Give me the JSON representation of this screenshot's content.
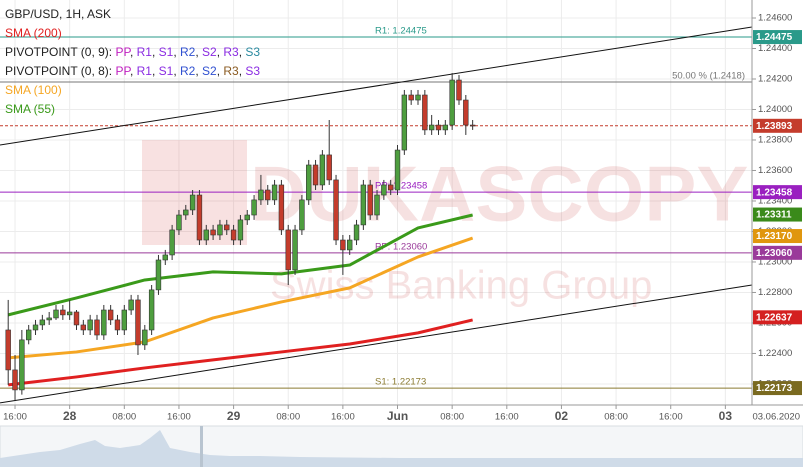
{
  "chart_data": {
    "type": "candlestick",
    "title": "GBP/USD, 1H, ASK",
    "up_color": "#4e9e3f",
    "down_color": "#c43c2c",
    "open": [
      1.22554,
      1.22292,
      1.22161,
      1.22489,
      1.22554,
      1.22587,
      1.2262,
      1.22633,
      1.22685,
      1.22653,
      1.22672,
      1.22587,
      1.22554,
      1.2262,
      1.22521,
      1.22685,
      1.2262,
      1.22554,
      1.22685,
      1.22751,
      1.22456,
      1.22554,
      1.22817,
      1.23013,
      1.23046,
      1.2321,
      1.23308,
      1.23341,
      1.23439,
      1.23144,
      1.2321,
      1.23177,
      1.23243,
      1.2321,
      1.23144,
      1.23276,
      1.23308,
      1.23407,
      1.23472,
      1.23407,
      1.23505,
      1.2321,
      1.22948,
      1.2321,
      1.23407,
      1.23636,
      1.23505,
      1.23702,
      1.23538,
      1.23144,
      1.23079,
      1.23144,
      1.23243,
      1.23505,
      1.23308,
      1.23439,
      1.23505,
      1.23472,
      1.23734,
      1.24095,
      1.24062,
      1.24095,
      1.23866,
      1.23898,
      1.23866,
      1.23898,
      1.24193,
      1.24062,
      1.23898
    ],
    "high": [
      1.22751,
      1.2239,
      1.22554,
      1.22587,
      1.2262,
      1.22653,
      1.22672,
      1.22718,
      1.22718,
      1.22751,
      1.22685,
      1.2262,
      1.22653,
      1.22653,
      1.22718,
      1.22718,
      1.22653,
      1.22718,
      1.22784,
      1.22784,
      1.22587,
      1.22849,
      1.23046,
      1.23079,
      1.23243,
      1.23341,
      1.23374,
      1.23472,
      1.23472,
      1.23243,
      1.23243,
      1.23276,
      1.23276,
      1.23243,
      1.23308,
      1.23341,
      1.23439,
      1.23571,
      1.23505,
      1.23538,
      1.23538,
      1.23243,
      1.23243,
      1.23439,
      1.23669,
      1.23669,
      1.23734,
      1.23931,
      1.23571,
      1.23177,
      1.23177,
      1.23276,
      1.23538,
      1.23538,
      1.23472,
      1.23538,
      1.23538,
      1.23767,
      1.24128,
      1.24128,
      1.24128,
      1.24128,
      1.23964,
      1.23931,
      1.23931,
      1.24239,
      1.24226,
      1.24095,
      1.23931
    ],
    "low": [
      1.22194,
      1.22095,
      1.2213,
      1.2246,
      1.22521,
      1.22554,
      1.22587,
      1.2262,
      1.2262,
      1.2262,
      1.22554,
      1.22521,
      1.22521,
      1.22489,
      1.22489,
      1.22587,
      1.22521,
      1.22521,
      1.22653,
      1.2239,
      1.22423,
      1.22521,
      1.22784,
      1.2298,
      1.23013,
      1.23177,
      1.23276,
      1.23308,
      1.23111,
      1.23111,
      1.23144,
      1.23144,
      1.23177,
      1.23111,
      1.23111,
      1.23243,
      1.23276,
      1.23374,
      1.23374,
      1.23374,
      1.23177,
      1.22849,
      1.22915,
      1.23177,
      1.23374,
      1.23472,
      1.23472,
      1.23505,
      1.23111,
      1.22915,
      1.23046,
      1.23111,
      1.2321,
      1.23276,
      1.23276,
      1.23407,
      1.23439,
      1.23439,
      1.23702,
      1.2403,
      1.2403,
      1.23833,
      1.23833,
      1.23833,
      1.23833,
      1.23866,
      1.2403,
      1.23833,
      1.23866
    ],
    "close": [
      1.22292,
      1.22161,
      1.22489,
      1.22554,
      1.22587,
      1.2262,
      1.22633,
      1.22685,
      1.22653,
      1.22672,
      1.22587,
      1.22554,
      1.2262,
      1.22521,
      1.22685,
      1.2262,
      1.22554,
      1.22685,
      1.22751,
      1.22456,
      1.22554,
      1.22817,
      1.23013,
      1.23046,
      1.2321,
      1.23308,
      1.23341,
      1.23439,
      1.23144,
      1.2321,
      1.23177,
      1.23243,
      1.2321,
      1.23144,
      1.23276,
      1.23308,
      1.23407,
      1.23472,
      1.23407,
      1.23505,
      1.2321,
      1.22948,
      1.2321,
      1.23407,
      1.23636,
      1.23505,
      1.23702,
      1.23538,
      1.23144,
      1.23079,
      1.23144,
      1.23243,
      1.23505,
      1.23308,
      1.23439,
      1.23505,
      1.23472,
      1.23734,
      1.24095,
      1.24062,
      1.24095,
      1.23866,
      1.23898,
      1.23866,
      1.23898,
      1.24193,
      1.24062,
      1.23898,
      1.23893
    ],
    "xlim": [
      -1.2,
      108.9
    ],
    "xticks": [
      {
        "value": 1,
        "label": "16:00"
      },
      {
        "value": 9,
        "label": "28"
      },
      {
        "value": 17,
        "label": "08:00"
      },
      {
        "value": 25,
        "label": "16:00"
      },
      {
        "value": 33,
        "label": "29"
      },
      {
        "value": 41,
        "label": "08:00"
      },
      {
        "value": 49,
        "label": "16:00"
      },
      {
        "value": 57,
        "label": "Jun"
      },
      {
        "value": 65,
        "label": "08:00"
      },
      {
        "value": 73,
        "label": "16:00"
      },
      {
        "value": 81,
        "label": "02"
      },
      {
        "value": 89,
        "label": "08:00"
      },
      {
        "value": 97,
        "label": "16:00"
      },
      {
        "value": 105,
        "label": "03"
      }
    ],
    "ylim": [
      1.22062,
      1.24718
    ],
    "yticks": [
      {
        "value": 1.246,
        "label": "1.24600"
      },
      {
        "value": 1.244,
        "label": "1.24400"
      },
      {
        "value": 1.242,
        "label": "1.24200"
      },
      {
        "value": 1.24,
        "label": "1.24000"
      },
      {
        "value": 1.238,
        "label": "1.23800"
      },
      {
        "value": 1.236,
        "label": "1.23600"
      },
      {
        "value": 1.234,
        "label": "1.23400"
      },
      {
        "value": 1.232,
        "label": "1.23200"
      },
      {
        "value": 1.23,
        "label": "1.23000"
      },
      {
        "value": 1.228,
        "label": "1.22800"
      },
      {
        "value": 1.226,
        "label": "1.22600"
      },
      {
        "value": 1.224,
        "label": "1.22400"
      },
      {
        "value": 1.222,
        "label": "1.22200"
      }
    ],
    "grid": true,
    "series": [
      {
        "name": "SMA (200)",
        "color": "#e02020",
        "x": [
          0,
          10,
          20,
          30,
          40,
          50,
          60,
          68
        ],
        "values": [
          1.22194,
          1.22246,
          1.22305,
          1.22358,
          1.2241,
          1.22462,
          1.22535,
          1.2262
        ]
      },
      {
        "name": "SMA (100)",
        "color": "#f5a623",
        "x": [
          0,
          10,
          20,
          30,
          40,
          50,
          60,
          68
        ],
        "values": [
          1.22371,
          1.2241,
          1.22476,
          1.22633,
          1.22738,
          1.2283,
          1.23033,
          1.23157
        ]
      },
      {
        "name": "SMA (55)",
        "color": "#3a9a1a",
        "x": [
          0,
          10,
          20,
          30,
          40,
          50,
          60,
          68
        ],
        "values": [
          1.22653,
          1.22764,
          1.22882,
          1.22935,
          1.22922,
          1.2298,
          1.23223,
          1.23308
        ]
      }
    ],
    "pivot_legends": [
      [
        {
          "text": "PIVOTPOINT (0, 9): ",
          "color": "#222"
        },
        {
          "text": "PP",
          "color": "#c020c0"
        },
        {
          "text": ", ",
          "color": "#222"
        },
        {
          "text": "R1",
          "color": "#8a2be2"
        },
        {
          "text": ", ",
          "color": "#222"
        },
        {
          "text": "S1",
          "color": "#8a2be2"
        },
        {
          "text": ", ",
          "color": "#222"
        },
        {
          "text": "R2",
          "color": "#3050d0"
        },
        {
          "text": ", ",
          "color": "#222"
        },
        {
          "text": "S2",
          "color": "#8a2be2"
        },
        {
          "text": ", ",
          "color": "#222"
        },
        {
          "text": "R3",
          "color": "#8a2be2"
        },
        {
          "text": ", ",
          "color": "#222"
        },
        {
          "text": "S3",
          "color": "#2a8aa0"
        }
      ],
      [
        {
          "text": "PIVOTPOINT (0, 8): ",
          "color": "#222"
        },
        {
          "text": "PP",
          "color": "#c020c0"
        },
        {
          "text": ", ",
          "color": "#222"
        },
        {
          "text": "R1",
          "color": "#8a2be2"
        },
        {
          "text": ", ",
          "color": "#222"
        },
        {
          "text": "S1",
          "color": "#8a2be2"
        },
        {
          "text": ", ",
          "color": "#222"
        },
        {
          "text": "R2",
          "color": "#3050d0"
        },
        {
          "text": ", ",
          "color": "#222"
        },
        {
          "text": "S2",
          "color": "#3050d0"
        },
        {
          "text": ", ",
          "color": "#222"
        },
        {
          "text": "R3",
          "color": "#8a5a20"
        },
        {
          "text": ", ",
          "color": "#222"
        },
        {
          "text": "S3",
          "color": "#8a2be2"
        }
      ]
    ],
    "levels": [
      {
        "label": "R1: 1.24475",
        "value": 1.24475,
        "color": "#2a9a8a",
        "style": "solid"
      },
      {
        "label": "50.00 % (1.2418)",
        "value": 1.2418,
        "color": "#777777",
        "style": "solid"
      },
      {
        "value": 1.23893,
        "color": "#c43c2c",
        "style": "dashed"
      },
      {
        "label": "PP: 1.23458",
        "value": 1.23458,
        "color": "#9a20c0",
        "style": "solid"
      },
      {
        "label": "PP: 1.23060",
        "value": 1.2306,
        "color": "#9a3a9a",
        "style": "solid"
      },
      {
        "label": "S1: 1.22173",
        "value": 1.22173,
        "color": "#8a7a30",
        "style": "solid"
      }
    ],
    "trendlines": [
      {
        "x": [
          -1.2,
          108.9
        ],
        "values": [
          1.23767,
          1.24541
        ],
        "color": "#111111"
      },
      {
        "x": [
          -1.2,
          108.9
        ],
        "values": [
          1.22076,
          1.22849
        ],
        "color": "#111111"
      }
    ],
    "price_badges": [
      {
        "value": 1.24475,
        "label": "1.24475",
        "color": "#2a9a8a"
      },
      {
        "value": 1.23893,
        "label": "1.23893",
        "color": "#c43c2c"
      },
      {
        "value": 1.23458,
        "label": "1.23458",
        "color": "#9a20c0"
      },
      {
        "value": 1.23311,
        "label": "1.23311",
        "color": "#3a8a1a"
      },
      {
        "value": 1.2317,
        "label": "1.23170",
        "color": "#e0960e"
      },
      {
        "value": 1.2306,
        "label": "1.23060",
        "color": "#9a3a9a"
      },
      {
        "value": 1.22637,
        "label": "1.22637",
        "color": "#d42020"
      },
      {
        "value": 1.22173,
        "label": "1.22173",
        "color": "#7a6a20"
      }
    ],
    "date_label": "03.06.2020",
    "watermark": [
      "DUKASCOPY",
      "Swiss Banking Group"
    ]
  }
}
